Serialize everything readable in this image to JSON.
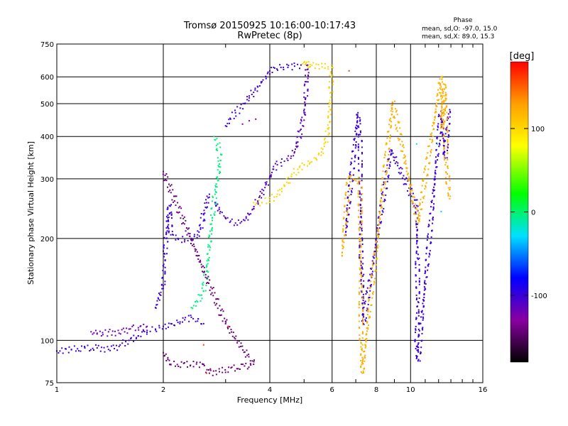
{
  "chart_data": {
    "type": "scatter",
    "title": "Tromsø 20150925 10:16:00-10:17:43",
    "subtitle": "RwPretec (8p)",
    "xlabel": "Frequency [MHz]",
    "ylabel": "Stationary phase Virtual Height [km]",
    "x_scale": "log",
    "y_scale": "log",
    "xlim": [
      1,
      16
    ],
    "ylim": [
      75,
      750
    ],
    "x_ticks": [
      1,
      2,
      4,
      6,
      8,
      10,
      16
    ],
    "y_ticks": [
      75,
      100,
      200,
      300,
      400,
      500,
      600,
      750
    ],
    "grid": true,
    "phase_stats": {
      "title": "Phase",
      "o_line": "mean, sd,O: -97.0, 15.0",
      "x_line": "mean, sd,X:  89.0, 15.3"
    },
    "colorbar": {
      "label": "[deg]",
      "range": [
        -180,
        180
      ],
      "ticks": [
        100,
        0,
        -100
      ],
      "tick_labels": [
        "100",
        "0",
        "-100"
      ],
      "colormap": [
        "#000000",
        "#8a00a0",
        "#0000ff",
        "#00e0ff",
        "#00ff00",
        "#ffff00",
        "#ffa000",
        "#ff0000"
      ]
    },
    "traces": [
      {
        "phase": -100,
        "points": [
          [
            1.0,
            93
          ],
          [
            1.1,
            94
          ],
          [
            1.2,
            95
          ],
          [
            1.3,
            95
          ],
          [
            1.4,
            94
          ],
          [
            1.5,
            96
          ],
          [
            1.6,
            100
          ],
          [
            1.7,
            103
          ],
          [
            1.8,
            107
          ],
          [
            1.9,
            108
          ],
          [
            2.0,
            110
          ],
          [
            2.1,
            112
          ],
          [
            2.2,
            113
          ],
          [
            2.3,
            115
          ],
          [
            2.4,
            117
          ],
          [
            2.5,
            114
          ],
          [
            2.6,
            112
          ]
        ]
      },
      {
        "phase": -120,
        "points": [
          [
            1.25,
            106
          ],
          [
            1.3,
            105
          ],
          [
            1.35,
            104
          ],
          [
            1.4,
            106
          ],
          [
            1.5,
            105
          ],
          [
            1.6,
            108
          ],
          [
            1.7,
            109
          ],
          [
            1.8,
            110
          ]
        ]
      },
      {
        "phase": -100,
        "points": [
          [
            1.9,
            125
          ],
          [
            2.0,
            145
          ],
          [
            2.02,
            180
          ],
          [
            2.04,
            200
          ],
          [
            2.06,
            230
          ],
          [
            2.08,
            250
          ],
          [
            2.1,
            205
          ],
          [
            2.2,
            200
          ],
          [
            2.3,
            198
          ],
          [
            2.4,
            200
          ],
          [
            2.5,
            205
          ],
          [
            2.55,
            215
          ],
          [
            2.6,
            235
          ],
          [
            2.65,
            255
          ],
          [
            2.7,
            270
          ]
        ]
      },
      {
        "phase": 0,
        "points": [
          [
            2.4,
            125
          ],
          [
            2.5,
            130
          ],
          [
            2.6,
            140
          ],
          [
            2.65,
            160
          ],
          [
            2.7,
            190
          ],
          [
            2.75,
            230
          ],
          [
            2.8,
            270
          ],
          [
            2.85,
            300
          ],
          [
            2.9,
            340
          ],
          [
            2.85,
            380
          ],
          [
            2.78,
            400
          ]
        ]
      },
      {
        "phase": -110,
        "points": [
          [
            2.8,
            255
          ],
          [
            2.9,
            240
          ],
          [
            3.0,
            230
          ],
          [
            3.1,
            225
          ],
          [
            3.2,
            222
          ],
          [
            3.3,
            222
          ],
          [
            3.4,
            226
          ],
          [
            3.5,
            235
          ],
          [
            3.6,
            245
          ],
          [
            3.7,
            258
          ],
          [
            3.8,
            272
          ],
          [
            3.9,
            288
          ],
          [
            4.0,
            305
          ],
          [
            4.1,
            320
          ],
          [
            4.2,
            330
          ],
          [
            4.3,
            335
          ],
          [
            4.4,
            338
          ],
          [
            4.5,
            340
          ],
          [
            4.6,
            350
          ],
          [
            4.7,
            360
          ],
          [
            4.8,
            385
          ],
          [
            4.9,
            420
          ],
          [
            5.0,
            470
          ],
          [
            5.05,
            520
          ],
          [
            5.08,
            580
          ],
          [
            5.1,
            630
          ],
          [
            5.12,
            650
          ]
        ]
      },
      {
        "phase": -100,
        "points": [
          [
            3.0,
            430
          ],
          [
            3.1,
            450
          ],
          [
            3.2,
            470
          ],
          [
            3.3,
            485
          ],
          [
            3.4,
            500
          ],
          [
            3.5,
            520
          ],
          [
            3.6,
            540
          ],
          [
            3.7,
            560
          ],
          [
            3.8,
            580
          ],
          [
            3.9,
            600
          ],
          [
            4.0,
            625
          ],
          [
            4.1,
            640
          ],
          [
            4.3,
            640
          ],
          [
            4.5,
            640
          ],
          [
            4.7,
            645
          ],
          [
            4.9,
            650
          ]
        ]
      },
      {
        "phase": 100,
        "points": [
          [
            3.6,
            255
          ],
          [
            3.8,
            255
          ],
          [
            4.0,
            260
          ],
          [
            4.2,
            270
          ],
          [
            4.4,
            285
          ],
          [
            4.6,
            305
          ],
          [
            4.8,
            320
          ],
          [
            5.0,
            330
          ],
          [
            5.2,
            335
          ],
          [
            5.4,
            345
          ],
          [
            5.6,
            360
          ],
          [
            5.75,
            385
          ],
          [
            5.85,
            420
          ],
          [
            5.92,
            480
          ],
          [
            5.95,
            540
          ],
          [
            5.98,
            600
          ],
          [
            6.0,
            640
          ],
          [
            4.95,
            655
          ],
          [
            5.2,
            652
          ]
        ]
      },
      {
        "phase": -120,
        "points": [
          [
            3.35,
            435
          ],
          [
            3.5,
            445
          ],
          [
            3.65,
            450
          ]
        ]
      },
      {
        "phase": -100,
        "points": [
          [
            6.55,
            205
          ],
          [
            7.1,
            470
          ],
          [
            7.2,
            405
          ],
          [
            7.25,
            170
          ],
          [
            7.3,
            155
          ],
          [
            7.35,
            112
          ],
          [
            8.8,
            365
          ],
          [
            10.4,
            250
          ],
          [
            10.45,
            175
          ],
          [
            10.5,
            130
          ],
          [
            10.4,
            96
          ],
          [
            10.5,
            87
          ],
          [
            12.2,
            475
          ],
          [
            12.3,
            440
          ],
          [
            12.5,
            345
          ],
          [
            12.9,
            480
          ]
        ]
      },
      {
        "phase": 120,
        "points": [
          [
            6.4,
            178
          ],
          [
            6.7,
            305
          ],
          [
            7.2,
            295
          ],
          [
            7.25,
            98
          ],
          [
            7.3,
            80
          ],
          [
            8.9,
            505
          ],
          [
            10.5,
            222
          ],
          [
            12.2,
            600
          ],
          [
            12.3,
            425
          ],
          [
            12.5,
            570
          ],
          [
            12.6,
            335
          ],
          [
            12.7,
            310
          ],
          [
            12.8,
            282
          ],
          [
            12.9,
            262
          ]
        ]
      },
      {
        "phase": -20,
        "points": [
          [
            11.9,
            380
          ],
          [
            12.2,
            240
          ],
          [
            10.4,
            380
          ]
        ]
      },
      {
        "phase": -140,
        "points": [
          [
            2.0,
            92
          ],
          [
            2.1,
            85
          ],
          [
            2.6,
            85
          ],
          [
            2.7,
            80
          ],
          [
            3.6,
            85
          ],
          [
            3.0,
            112
          ],
          [
            2.0,
            315
          ]
        ]
      },
      {
        "phase": 160,
        "points": [
          [
            2.65,
            80
          ],
          [
            2.6,
            97
          ],
          [
            3.05,
            110
          ],
          [
            6.7,
            625
          ]
        ]
      }
    ]
  }
}
